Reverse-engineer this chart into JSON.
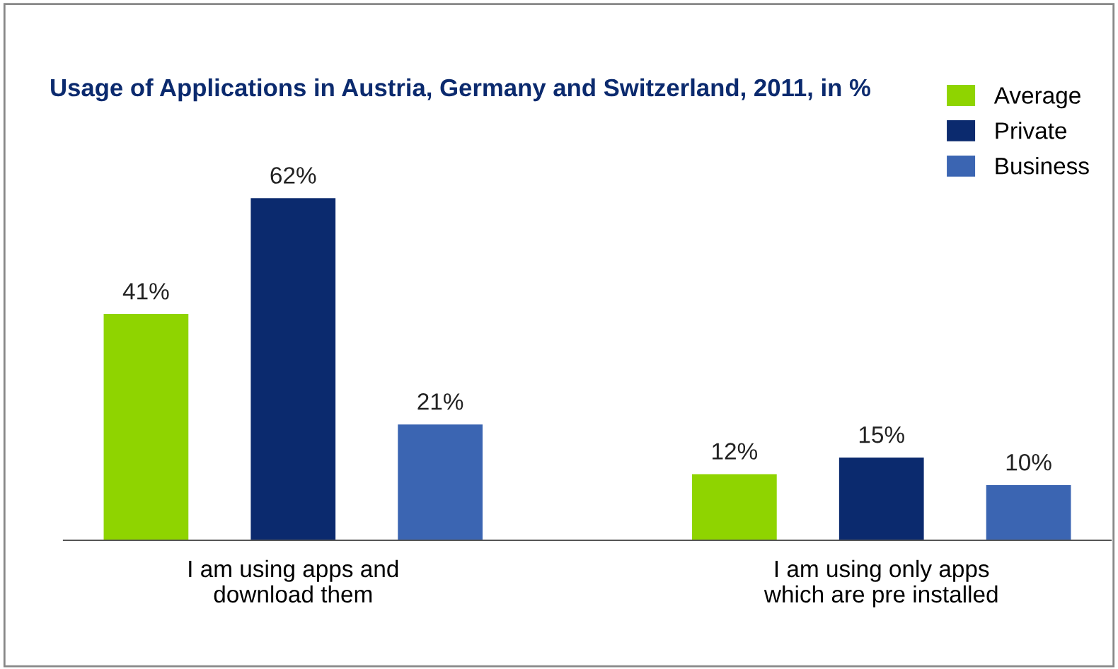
{
  "chart_data": {
    "type": "bar",
    "title": "Usage of Applications in Austria, Germany and Switzerland, 2011, in %",
    "categories": [
      "I am using apps and\ndownload them",
      "I am using only apps\nwhich are pre installed"
    ],
    "series": [
      {
        "name": "Average",
        "color": "#8fd400",
        "values": [
          41,
          12
        ],
        "value_labels": [
          "41%",
          "12%"
        ]
      },
      {
        "name": "Private",
        "color": "#0b2a6e",
        "values": [
          62,
          15
        ],
        "value_labels": [
          "62%",
          "15%"
        ]
      },
      {
        "name": "Business",
        "color": "#3b65b2",
        "values": [
          21,
          10
        ],
        "value_labels": [
          "21%",
          "10%"
        ]
      }
    ],
    "legend": "top right",
    "grid": false
  }
}
